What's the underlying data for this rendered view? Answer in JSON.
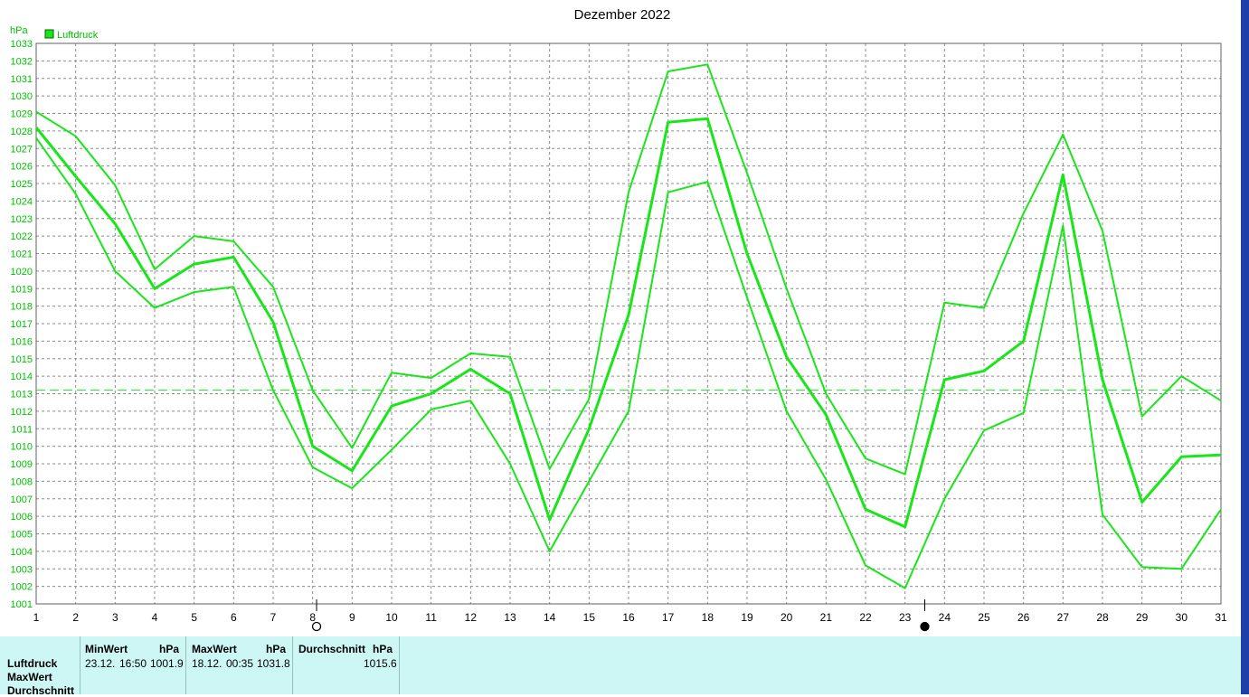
{
  "chart_data": {
    "type": "line",
    "title": "Dezember 2022",
    "ylabel": "hPa",
    "ylim": [
      1001,
      1033
    ],
    "yticks": [
      1001,
      1002,
      1003,
      1004,
      1005,
      1006,
      1007,
      1008,
      1009,
      1010,
      1011,
      1012,
      1013,
      1014,
      1015,
      1016,
      1017,
      1018,
      1019,
      1020,
      1021,
      1022,
      1023,
      1024,
      1025,
      1026,
      1027,
      1028,
      1029,
      1030,
      1031,
      1032,
      1033
    ],
    "x": [
      1,
      2,
      3,
      4,
      5,
      6,
      7,
      8,
      9,
      10,
      11,
      12,
      13,
      14,
      15,
      16,
      17,
      18,
      19,
      20,
      21,
      22,
      23,
      24,
      25,
      26,
      27,
      28,
      29,
      30,
      31
    ],
    "grid": true,
    "legend": "top-left",
    "reference_line": 1013.2,
    "moon_markers": [
      {
        "x": 8.1,
        "phase": "full"
      },
      {
        "x": 23.5,
        "phase": "new"
      }
    ],
    "series": [
      {
        "name": "Luftdruck",
        "role": "mean",
        "values": [
          1028.2,
          1025.4,
          1022.7,
          1019.0,
          1020.4,
          1020.8,
          1017.1,
          1010.0,
          1008.6,
          1012.3,
          1013.0,
          1014.4,
          1013.0,
          1005.8,
          1011.0,
          1017.5,
          1028.5,
          1028.7,
          1021.0,
          1015.1,
          1011.8,
          1006.4,
          1005.4,
          1013.8,
          1014.3,
          1016.0,
          1025.5,
          1013.8,
          1006.8,
          1009.4,
          1009.5
        ]
      },
      {
        "role": "max",
        "values": [
          1029.1,
          1027.7,
          1024.9,
          1020.1,
          1022.0,
          1021.7,
          1019.1,
          1013.2,
          1009.9,
          1014.2,
          1013.9,
          1015.3,
          1015.1,
          1008.7,
          1012.7,
          1024.5,
          1031.4,
          1031.8,
          1025.6,
          1019.0,
          1013.0,
          1009.3,
          1008.4,
          1018.2,
          1017.9,
          1023.3,
          1027.8,
          1022.3,
          1011.7,
          1014.0,
          1012.6
        ]
      },
      {
        "role": "min",
        "values": [
          1027.6,
          1024.4,
          1020.0,
          1017.9,
          1018.8,
          1019.1,
          1013.2,
          1008.8,
          1007.6,
          1009.8,
          1012.1,
          1012.6,
          1009.0,
          1004.0,
          1008.0,
          1012.0,
          1024.5,
          1025.1,
          1018.5,
          1012.0,
          1008.1,
          1003.2,
          1001.9,
          1007.0,
          1010.9,
          1011.9,
          1022.6,
          1006.1,
          1003.1,
          1003.0,
          1006.4
        ]
      }
    ],
    "colors": {
      "line": "#19e619",
      "grid": "#8c8c8c",
      "axis_text": "#00c000",
      "ref_line": "#19e619"
    }
  },
  "stats": {
    "row_labels": [
      "Luftdruck",
      "MaxWert",
      "Durchschnitt"
    ],
    "min": {
      "header": "MinWert",
      "unit": "hPa",
      "date": "23.12.",
      "time": "16:50",
      "value": "1001.9"
    },
    "max": {
      "header": "MaxWert",
      "unit": "hPa",
      "date": "18.12.",
      "time": "00:35",
      "value": "1031.8"
    },
    "avg": {
      "header": "Durchschnitt",
      "unit": "hPa",
      "value": "1015.6"
    }
  },
  "colors": {
    "panel_bg": "#ccf7f4",
    "right_strip": "#1f3fa8"
  }
}
